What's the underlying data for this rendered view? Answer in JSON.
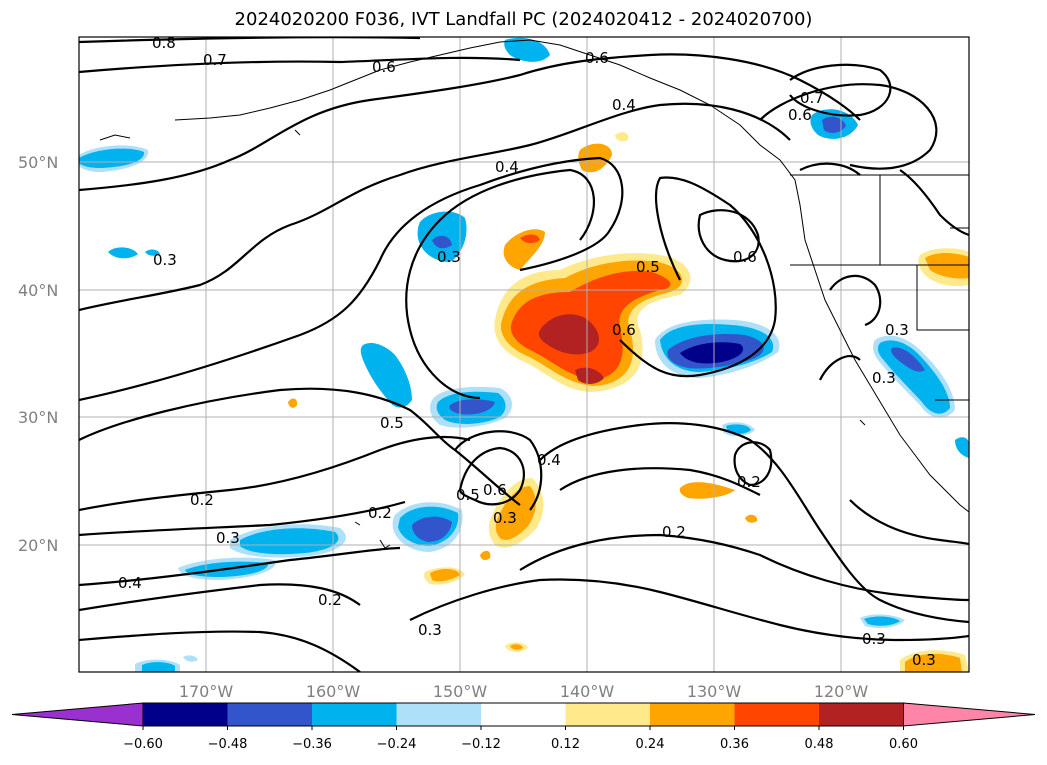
{
  "title": "2024020200 F036, IVT Landfall PC (2024020412 - 2024020700)",
  "latitude_labels": [
    "50°N",
    "40°N",
    "30°N",
    "20°N"
  ],
  "longitude_labels": [
    "170°W",
    "160°W",
    "150°W",
    "140°W",
    "130°W",
    "120°W"
  ],
  "contour_labels": [
    "0.8",
    "0.7",
    "0.6",
    "0.6",
    "0.4",
    "0.4",
    "0.7",
    "0.6",
    "0.3",
    "0.3",
    "0.5",
    "0.6",
    "0.6",
    "0.3",
    "0.5",
    "0.4",
    "0.5",
    "0.6",
    "0.3",
    "0.2",
    "0.2",
    "0.2",
    "0.3",
    "0.4",
    "0.2",
    "0.2",
    "0.3",
    "0.3",
    "0.3",
    "0.3"
  ],
  "colorbar": {
    "ticks": [
      "−0.60",
      "−0.48",
      "−0.36",
      "−0.24",
      "−0.12",
      "0.12",
      "0.24",
      "0.36",
      "0.48",
      "0.60"
    ],
    "colors": [
      "#9b30d0",
      "#00008b",
      "#3355cc",
      "#00b2ee",
      "#aee0fa",
      "#ffffff",
      "#ffe98a",
      "#ffa500",
      "#ff4500",
      "#b22222",
      "#ff85a8"
    ]
  }
}
